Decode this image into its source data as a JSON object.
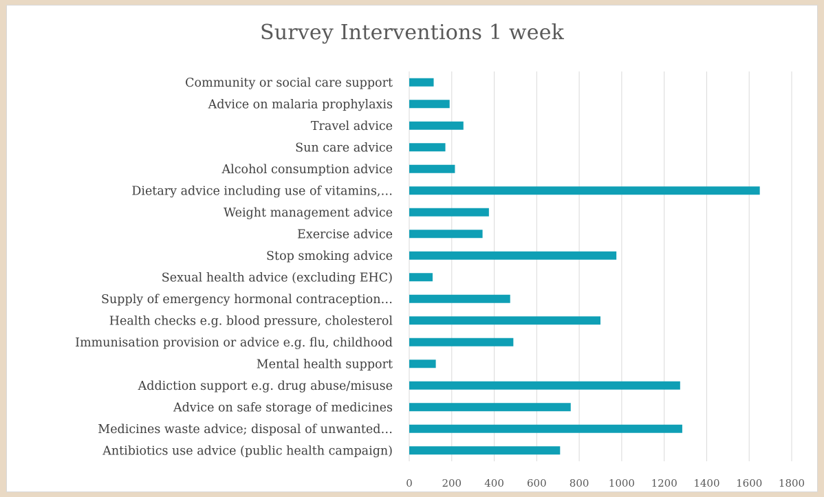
{
  "chart_data": {
    "type": "bar",
    "orientation": "horizontal",
    "title": "Survey Interventions 1 week",
    "xlabel": "",
    "ylabel": "",
    "categories": [
      "Community or social care support",
      "Advice on malaria prophylaxis",
      "Travel advice",
      "Sun care advice",
      "Alcohol consumption advice",
      "Dietary advice including use of vitamins,…",
      "Weight management advice",
      "Exercise advice",
      "Stop smoking advice",
      "Sexual health advice (excluding EHC)",
      "Supply of emergency hormonal contraception…",
      "Health checks e.g. blood pressure, cholesterol",
      "Immunisation provision or advice e.g. flu, childhood",
      "Mental health support",
      "Addiction support e.g. drug abuse/misuse",
      "Advice on safe storage of medicines",
      "Medicines waste advice; disposal of unwanted…",
      "Antibiotics use advice (public health campaign)"
    ],
    "values": [
      115,
      190,
      255,
      170,
      215,
      1650,
      375,
      345,
      975,
      110,
      475,
      900,
      490,
      125,
      1275,
      760,
      1285,
      710
    ],
    "xlim": [
      0,
      1800
    ],
    "xticks": [
      0,
      200,
      400,
      600,
      800,
      1000,
      1200,
      1400,
      1600,
      1800
    ],
    "xtick_labels": [
      "0",
      "200",
      "400",
      "600",
      "800",
      "1000",
      "1200",
      "1400",
      "1600",
      "1800"
    ],
    "grid": true,
    "legend": "none",
    "bar_color": "#0f9fb5"
  }
}
